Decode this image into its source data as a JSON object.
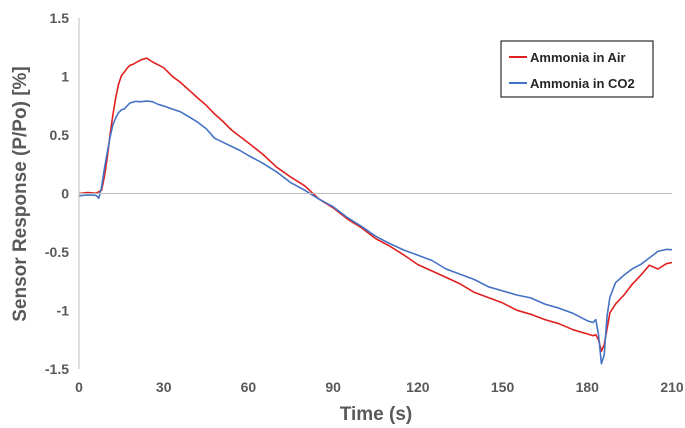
{
  "chart_data": {
    "type": "line",
    "xlabel": "Time (s)",
    "ylabel": "Sensor Response (P/Po) [%]",
    "xlim": [
      0,
      210
    ],
    "ylim": [
      -1.5,
      1.5
    ],
    "xticks": [
      "0",
      "30",
      "60",
      "90",
      "120",
      "150",
      "180",
      "210"
    ],
    "yticks": [
      "1.5",
      "1",
      "0.5",
      "0",
      "-0.5",
      "-1",
      "-1.5"
    ],
    "grid": false,
    "legend_position": "top-right",
    "series": [
      {
        "name": "Ammonia in Air",
        "color": "#e02020",
        "x": [
          0,
          3,
          6,
          8,
          9,
          10,
          11,
          12,
          13,
          14,
          15,
          16,
          17,
          18,
          19,
          20,
          22,
          24,
          26,
          28,
          30,
          33,
          36,
          39,
          42,
          45,
          48,
          51,
          54,
          57,
          60,
          65,
          70,
          75,
          80,
          85,
          90,
          95,
          100,
          105,
          110,
          115,
          120,
          125,
          130,
          135,
          140,
          145,
          150,
          155,
          160,
          165,
          170,
          175,
          180,
          182,
          183,
          184,
          185,
          186,
          187,
          188,
          190,
          193,
          196,
          199,
          202,
          205,
          208,
          210
        ],
        "y": [
          0,
          0.01,
          0,
          0.02,
          0.15,
          0.3,
          0.5,
          0.68,
          0.82,
          0.93,
          1.0,
          1.04,
          1.07,
          1.09,
          1.11,
          1.12,
          1.14,
          1.15,
          1.13,
          1.1,
          1.07,
          1.01,
          0.95,
          0.88,
          0.81,
          0.76,
          0.68,
          0.61,
          0.55,
          0.49,
          0.43,
          0.33,
          0.23,
          0.14,
          0.06,
          -0.04,
          -0.12,
          -0.22,
          -0.3,
          -0.38,
          -0.45,
          -0.53,
          -0.6,
          -0.66,
          -0.72,
          -0.78,
          -0.84,
          -0.89,
          -0.94,
          -0.99,
          -1.03,
          -1.08,
          -1.12,
          -1.16,
          -1.2,
          -1.22,
          -1.2,
          -1.25,
          -1.35,
          -1.3,
          -1.15,
          -1.02,
          -0.95,
          -0.86,
          -0.77,
          -0.7,
          -0.62,
          -0.64,
          -0.6,
          -0.59
        ]
      },
      {
        "name": "Ammonia in CO2",
        "color": "#4472c4",
        "x": [
          0,
          3,
          6,
          7,
          8,
          9,
          10,
          11,
          12,
          13,
          14,
          15,
          16,
          17,
          18,
          20,
          22,
          24,
          26,
          28,
          30,
          33,
          36,
          39,
          42,
          45,
          48,
          51,
          54,
          57,
          60,
          65,
          70,
          75,
          80,
          85,
          90,
          95,
          100,
          105,
          110,
          115,
          120,
          125,
          130,
          135,
          140,
          145,
          150,
          155,
          160,
          165,
          170,
          175,
          180,
          182,
          183,
          184,
          185,
          186,
          187,
          188,
          190,
          193,
          196,
          199,
          202,
          205,
          208,
          210
        ],
        "y": [
          -0.02,
          -0.02,
          -0.01,
          -0.04,
          0.05,
          0.22,
          0.35,
          0.48,
          0.58,
          0.65,
          0.69,
          0.71,
          0.73,
          0.75,
          0.77,
          0.78,
          0.79,
          0.79,
          0.78,
          0.77,
          0.75,
          0.72,
          0.69,
          0.66,
          0.61,
          0.55,
          0.48,
          0.44,
          0.4,
          0.36,
          0.33,
          0.26,
          0.18,
          0.1,
          0.03,
          -0.05,
          -0.12,
          -0.2,
          -0.28,
          -0.37,
          -0.42,
          -0.48,
          -0.53,
          -0.58,
          -0.64,
          -0.69,
          -0.74,
          -0.79,
          -0.83,
          -0.87,
          -0.9,
          -0.94,
          -0.98,
          -1.03,
          -1.08,
          -1.1,
          -1.08,
          -1.22,
          -1.45,
          -1.38,
          -1.05,
          -0.88,
          -0.76,
          -0.7,
          -0.65,
          -0.6,
          -0.55,
          -0.5,
          -0.47,
          -0.48
        ]
      }
    ]
  }
}
